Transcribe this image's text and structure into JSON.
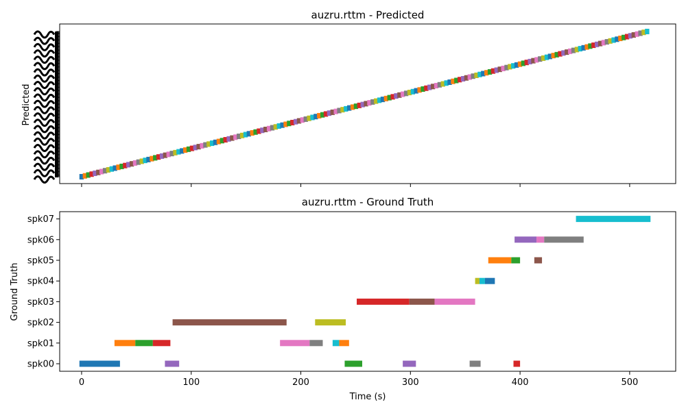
{
  "colors": {
    "tab10": [
      "#1f77b4",
      "#ff7f0e",
      "#2ca02c",
      "#d62728",
      "#9467bd",
      "#8c564b",
      "#e377c2",
      "#7f7f7f",
      "#bcbd22",
      "#17becf"
    ]
  },
  "chart_data": [
    {
      "type": "timeline",
      "title": "auzru.rttm - Predicted",
      "ylabel": "Predicted",
      "xlabel": "",
      "xlim": [
        -20,
        542
      ],
      "xticks": [
        0,
        100,
        200,
        300,
        400,
        500
      ],
      "show_xtick_labels": false,
      "segments_note": "dense staircase: one short segment per predicted label, labels unreadable",
      "staircase": {
        "x_start": -2,
        "x_end": 517,
        "count": 170
      },
      "grid": false
    },
    {
      "type": "timeline",
      "title": "auzru.rttm - Ground Truth",
      "ylabel": "Ground Truth",
      "xlabel": "Time (s)",
      "xlim": [
        -20,
        542
      ],
      "xticks": [
        0,
        100,
        200,
        300,
        400,
        500
      ],
      "categories": [
        "spk00",
        "spk01",
        "spk02",
        "spk03",
        "spk04",
        "spk05",
        "spk06",
        "spk07"
      ],
      "segments": [
        {
          "speaker": "spk00",
          "start": -2,
          "end": 35,
          "color": 0
        },
        {
          "speaker": "spk00",
          "start": 76,
          "end": 89,
          "color": 4
        },
        {
          "speaker": "spk00",
          "start": 240,
          "end": 256,
          "color": 2
        },
        {
          "speaker": "spk00",
          "start": 293,
          "end": 305,
          "color": 4
        },
        {
          "speaker": "spk00",
          "start": 354,
          "end": 364,
          "color": 7
        },
        {
          "speaker": "spk00",
          "start": 394,
          "end": 400,
          "color": 3
        },
        {
          "speaker": "spk01",
          "start": 30,
          "end": 49,
          "color": 1
        },
        {
          "speaker": "spk01",
          "start": 49,
          "end": 65,
          "color": 2
        },
        {
          "speaker": "spk01",
          "start": 65,
          "end": 81,
          "color": 3
        },
        {
          "speaker": "spk01",
          "start": 181,
          "end": 208,
          "color": 6
        },
        {
          "speaker": "spk01",
          "start": 208,
          "end": 220,
          "color": 7
        },
        {
          "speaker": "spk01",
          "start": 229,
          "end": 235,
          "color": 9
        },
        {
          "speaker": "spk01",
          "start": 235,
          "end": 244,
          "color": 1
        },
        {
          "speaker": "spk02",
          "start": 83,
          "end": 187,
          "color": 5
        },
        {
          "speaker": "spk02",
          "start": 213,
          "end": 241,
          "color": 8
        },
        {
          "speaker": "spk03",
          "start": 251,
          "end": 299,
          "color": 3
        },
        {
          "speaker": "spk03",
          "start": 299,
          "end": 322,
          "color": 5
        },
        {
          "speaker": "spk03",
          "start": 322,
          "end": 359,
          "color": 6
        },
        {
          "speaker": "spk04",
          "start": 359,
          "end": 363,
          "color": 8
        },
        {
          "speaker": "spk04",
          "start": 363,
          "end": 368,
          "color": 9
        },
        {
          "speaker": "spk04",
          "start": 368,
          "end": 377,
          "color": 0
        },
        {
          "speaker": "spk05",
          "start": 371,
          "end": 392,
          "color": 1
        },
        {
          "speaker": "spk05",
          "start": 392,
          "end": 400,
          "color": 2
        },
        {
          "speaker": "spk05",
          "start": 413,
          "end": 420,
          "color": 5
        },
        {
          "speaker": "spk06",
          "start": 395,
          "end": 415,
          "color": 4
        },
        {
          "speaker": "spk06",
          "start": 415,
          "end": 422,
          "color": 6
        },
        {
          "speaker": "spk06",
          "start": 422,
          "end": 458,
          "color": 7
        },
        {
          "speaker": "spk07",
          "start": 451,
          "end": 519,
          "color": 9
        }
      ],
      "grid": false
    }
  ]
}
